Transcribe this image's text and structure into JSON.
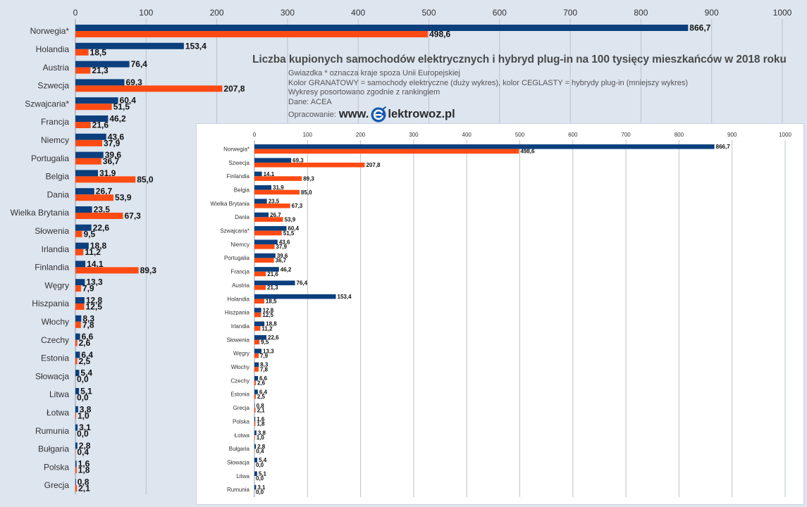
{
  "title": "Liczba kupionych samochodów elektrycznych i hybryd plug-in na 100 tysięcy mieszkańców w 2018 roku",
  "notes": [
    "Gwiazdka * oznacza kraje spoza Unii Europejskiej",
    "Kolor GRANATOWY = samochody elektryczne (duży wykres), kolor CEGLASTY = hybrydy plug-in (mniejszy wykres)",
    "Wykresy posortowano zgodnie z rankingiem",
    "Dane: ACEA"
  ],
  "credit": {
    "label": "Opracowanie:",
    "logo_prefix": "www.",
    "logo_suffix": "lektrowoz.pl",
    "logo_icon": "plug-e-icon"
  },
  "colors": {
    "electric": "#0b3f7d",
    "plugin": "#fd4b13",
    "grid": "#b9c3ce",
    "page_bg": "#dde5ef",
    "inset_bg": "#ffffff"
  },
  "chart_data": [
    {
      "type": "bar",
      "orientation": "horizontal",
      "xlim": [
        0,
        1000
      ],
      "x_ticks": [
        0,
        100,
        200,
        300,
        400,
        500,
        600,
        700,
        800,
        900,
        1000
      ],
      "grid": true,
      "categories": [
        "Norwegia*",
        "Holandia",
        "Austria",
        "Szwecja",
        "Szwajcaria*",
        "Francja",
        "Niemcy",
        "Portugalia",
        "Belgia",
        "Dania",
        "Wielka Brytania",
        "Słowenia",
        "Irlandia",
        "Finlandia",
        "Węgry",
        "Hiszpania",
        "Włochy",
        "Czechy",
        "Estonia",
        "Słowacja",
        "Litwa",
        "Łotwa",
        "Rumunia",
        "Bułgaria",
        "Polska",
        "Grecja"
      ],
      "series": [
        {
          "color": "#0b3f7d",
          "values": [
            866.7,
            153.4,
            76.4,
            69.3,
            60.4,
            46.2,
            43.6,
            39.6,
            31.9,
            26.7,
            23.5,
            22.6,
            18.8,
            14.1,
            13.3,
            12.8,
            8.3,
            6.6,
            6.4,
            5.4,
            5.1,
            3.8,
            3.1,
            2.8,
            1.6,
            0.8
          ],
          "labels": [
            "866,7",
            "153,4",
            "76,4",
            "69,3",
            "60,4",
            "46,2",
            "43,6",
            "39,6",
            "31,9",
            "26,7",
            "23,5",
            "22,6",
            "18,8",
            "14,1",
            "13,3",
            "12,8",
            "8,3",
            "6,6",
            "6,4",
            "5,4",
            "5,1",
            "3,8",
            "3,1",
            "2,8",
            "1,6",
            "0,8"
          ]
        },
        {
          "color": "#fd4b13",
          "values": [
            498.6,
            18.5,
            21.3,
            207.8,
            51.5,
            21.6,
            37.9,
            36.7,
            85.0,
            53.9,
            67.3,
            9.5,
            11.2,
            89.3,
            7.9,
            12.5,
            7.8,
            2.6,
            2.5,
            0.0,
            0.0,
            1.0,
            0.0,
            0.4,
            1.8,
            2.1
          ],
          "labels": [
            "498,6",
            "18,5",
            "21,3",
            "207,8",
            "51,5",
            "21,6",
            "37,9",
            "36,7",
            "85,0",
            "53,9",
            "67,3",
            "9,5",
            "11,2",
            "89,3",
            "7,9",
            "12,5",
            "7,8",
            "2,6",
            "2,5",
            "0,0",
            "0,0",
            "1,0",
            "0,0",
            "0,4",
            "1,8",
            "2,1"
          ]
        }
      ]
    },
    {
      "type": "bar",
      "orientation": "horizontal",
      "xlim": [
        0,
        1000
      ],
      "x_ticks": [
        0,
        100,
        200,
        300,
        400,
        500,
        600,
        700,
        800,
        900,
        1000
      ],
      "grid": true,
      "categories": [
        "Norwegia*",
        "Szwecja",
        "Finlandia",
        "Belgia",
        "Wielka Brytania",
        "Dania",
        "Szwajcaria*",
        "Niemcy",
        "Portugalia",
        "Francja",
        "Austria",
        "Holandia",
        "Hiszpania",
        "Irlandia",
        "Słowenia",
        "Węgry",
        "Włochy",
        "Czechy",
        "Estonia",
        "Grecja",
        "Polska",
        "Łotwa",
        "Bułgaria",
        "Słowacja",
        "Litwa",
        "Rumunia"
      ],
      "series": [
        {
          "color": "#0b3f7d",
          "values": [
            866.7,
            69.3,
            14.1,
            31.9,
            23.5,
            26.7,
            60.4,
            43.6,
            39.6,
            46.2,
            76.4,
            153.4,
            12.8,
            18.8,
            22.6,
            13.3,
            8.3,
            6.6,
            6.4,
            0.8,
            1.6,
            3.8,
            2.8,
            5.4,
            5.1,
            3.1
          ],
          "labels": [
            "866,7",
            "69,3",
            "14,1",
            "31,9",
            "23,5",
            "26,7",
            "60,4",
            "43,6",
            "39,6",
            "46,2",
            "76,4",
            "153,4",
            "12,8",
            "18,8",
            "22,6",
            "13,3",
            "8,3",
            "6,6",
            "6,4",
            "0,8",
            "1,6",
            "3,8",
            "2,8",
            "5,4",
            "5,1",
            "3,1"
          ]
        },
        {
          "color": "#fd4b13",
          "values": [
            498.6,
            207.8,
            89.3,
            85.0,
            67.3,
            53.9,
            51.5,
            37.9,
            36.7,
            21.6,
            21.3,
            18.5,
            12.5,
            11.2,
            9.5,
            7.9,
            7.8,
            2.6,
            2.5,
            2.1,
            1.8,
            1.0,
            0.4,
            0.0,
            0.0,
            0.0
          ],
          "labels": [
            "498,6",
            "207,8",
            "89,3",
            "85,0",
            "67,3",
            "53,9",
            "51,5",
            "37,9",
            "36,7",
            "21,6",
            "21,3",
            "18,5",
            "12,5",
            "11,2",
            "9,5",
            "7,9",
            "7,8",
            "2,6",
            "2,5",
            "2,1",
            "1,8",
            "1,0",
            "0,4",
            "0,0",
            "0,0",
            "0,0"
          ]
        }
      ]
    }
  ]
}
